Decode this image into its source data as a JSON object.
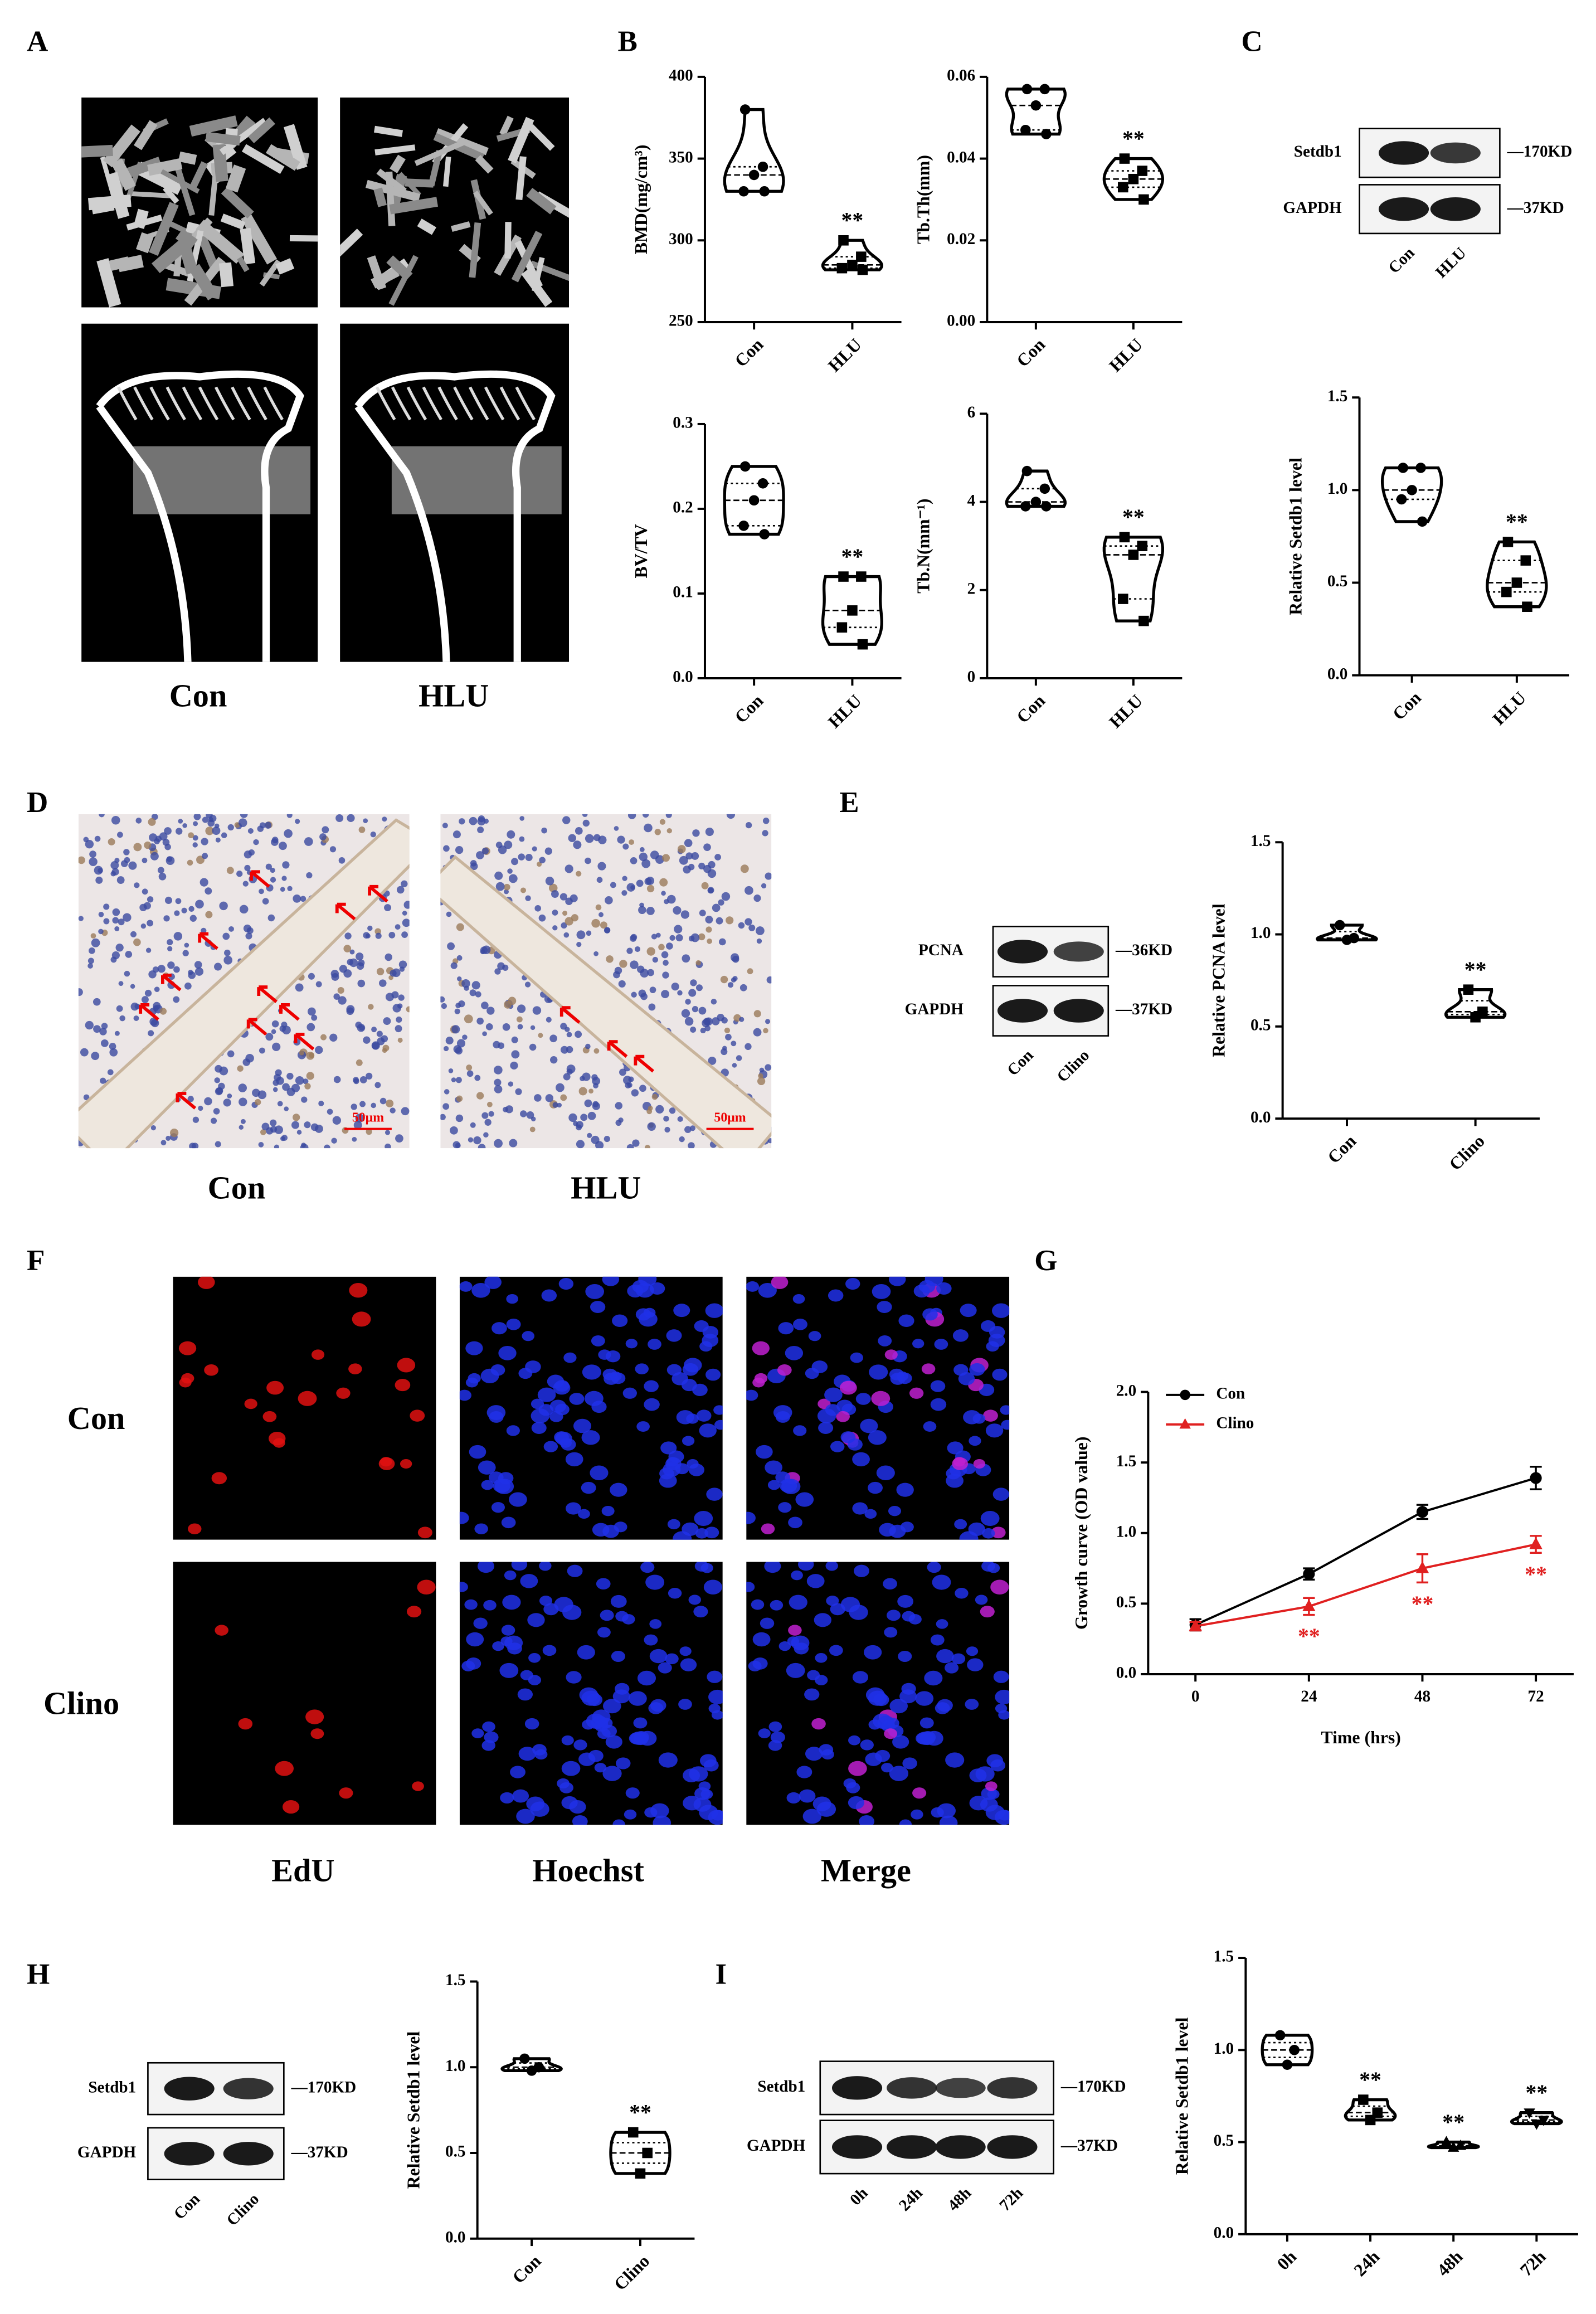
{
  "panel_labels": [
    "A",
    "B",
    "C",
    "D",
    "E",
    "F",
    "G",
    "H",
    "I"
  ],
  "panel_a": {
    "labels": [
      "Con",
      "HLU"
    ]
  },
  "panel_d": {
    "labels": [
      "Con",
      "HLU"
    ],
    "scale_bar": "50μm"
  },
  "panel_f": {
    "rows": [
      "Con",
      "Clino"
    ],
    "columns": [
      "EdU",
      "Hoechst",
      "Merge"
    ]
  },
  "blots": [
    {
      "proteins": [
        "Setdb1",
        "GAPDH"
      ],
      "sizes": [
        "—170KD",
        "—37KD"
      ],
      "lanes": [
        "Con",
        "HLU"
      ]
    },
    {
      "proteins": [
        "PCNA",
        "GAPDH"
      ],
      "sizes": [
        "—36KD",
        "—37KD"
      ],
      "lanes": [
        "Con",
        "Clino"
      ]
    },
    {
      "proteins": [
        "Setdb1",
        "GAPDH"
      ],
      "sizes": [
        "—170KD",
        "—37KD"
      ],
      "lanes": [
        "Con",
        "Clino"
      ]
    },
    {
      "proteins": [
        "Setdb1",
        "GAPDH"
      ],
      "sizes": [
        "—170KD",
        "—37KD"
      ],
      "lanes": [
        "0h",
        "24h",
        "48h",
        "72h"
      ]
    }
  ],
  "chart_data": [
    {
      "type": "violin",
      "ylabel": "BMD(mg/cm³)",
      "categories": [
        "Con",
        "HLU"
      ],
      "values": [
        [
          380,
          345,
          340,
          330,
          330
        ],
        [
          300,
          290,
          285,
          283,
          282
        ]
      ],
      "markers": [
        "circle",
        "square"
      ],
      "significance": [
        null,
        "**"
      ],
      "ylim": [
        250,
        400
      ],
      "yticks": [
        250,
        300,
        350,
        400
      ]
    },
    {
      "type": "violin",
      "ylabel": "Tb.Th(mm)",
      "categories": [
        "Con",
        "HLU"
      ],
      "values": [
        [
          0.057,
          0.057,
          0.053,
          0.047,
          0.046
        ],
        [
          0.04,
          0.037,
          0.035,
          0.033,
          0.03
        ]
      ],
      "markers": [
        "circle",
        "square"
      ],
      "significance": [
        null,
        "**"
      ],
      "ylim": [
        0,
        0.06
      ],
      "yticks": [
        {
          "value": 0,
          "label": "0.00"
        },
        {
          "value": 0.02,
          "label": "0.02"
        },
        {
          "value": 0.04,
          "label": "0.04"
        },
        {
          "value": 0.06,
          "label": "0.06"
        }
      ]
    },
    {
      "type": "violin",
      "ylabel": "BV/TV",
      "categories": [
        "Con",
        "HLU"
      ],
      "values": [
        [
          0.25,
          0.23,
          0.21,
          0.18,
          0.17
        ],
        [
          0.12,
          0.12,
          0.08,
          0.06,
          0.04
        ]
      ],
      "markers": [
        "circle",
        "square"
      ],
      "significance": [
        null,
        "**"
      ],
      "ylim": [
        0,
        0.3
      ],
      "yticks": [
        {
          "value": 0,
          "label": "0.0"
        },
        0.1,
        0.2,
        0.3
      ]
    },
    {
      "type": "violin",
      "ylabel": "Tb.N(mm⁻¹)",
      "categories": [
        "Con",
        "HLU"
      ],
      "values": [
        [
          4.7,
          4.3,
          4.0,
          3.9,
          3.9
        ],
        [
          3.2,
          3.0,
          2.8,
          1.8,
          1.3
        ]
      ],
      "markers": [
        "circle",
        "square"
      ],
      "significance": [
        null,
        "**"
      ],
      "ylim": [
        0,
        6
      ],
      "yticks": [
        0,
        2,
        4,
        6
      ]
    },
    {
      "type": "violin",
      "ylabel": "Relative Setdb1 level",
      "categories": [
        "Con",
        "HLU"
      ],
      "values": [
        [
          1.12,
          1.12,
          1.0,
          0.95,
          0.83
        ],
        [
          0.72,
          0.62,
          0.5,
          0.45,
          0.37
        ]
      ],
      "markers": [
        "circle",
        "square"
      ],
      "significance": [
        null,
        "**"
      ],
      "ylim": [
        0,
        1.5
      ],
      "yticks": [
        {
          "value": 0,
          "label": "0.0"
        },
        0.5,
        {
          "value": 1,
          "label": "1.0"
        },
        1.5
      ]
    },
    {
      "type": "violin",
      "ylabel": "Relative PCNA level",
      "categories": [
        "Con",
        "Clino"
      ],
      "values": [
        [
          1.05,
          0.98,
          0.97
        ],
        [
          0.7,
          0.58,
          0.55
        ]
      ],
      "markers": [
        "circle",
        "square"
      ],
      "significance": [
        null,
        "**"
      ],
      "ylim": [
        0,
        1.5
      ],
      "yticks": [
        {
          "value": 0,
          "label": "0.0"
        },
        0.5,
        {
          "value": 1,
          "label": "1.0"
        },
        1.5
      ]
    },
    {
      "type": "line",
      "ylabel": "Growth curve (OD value)",
      "xlabel": "Time (hrs)",
      "x": [
        0,
        24,
        48,
        72
      ],
      "series": [
        {
          "name": "Con",
          "color": "#000000",
          "marker": "circle",
          "values": [
            0.35,
            0.71,
            1.15,
            1.39
          ],
          "errors": [
            0.04,
            0.04,
            0.05,
            0.08
          ]
        },
        {
          "name": "Clino",
          "color": "#e02020",
          "marker": "triangle",
          "values": [
            0.34,
            0.48,
            0.75,
            0.92
          ],
          "errors": [
            0.03,
            0.06,
            0.1,
            0.06
          ],
          "significance": [
            null,
            "**",
            "**",
            "**"
          ]
        }
      ],
      "legend": "top-left",
      "xlim": [
        -10,
        80
      ],
      "xticks": [
        0,
        24,
        48,
        72
      ],
      "ylim": [
        0,
        2
      ],
      "yticks": [
        {
          "value": 0,
          "label": "0.0"
        },
        0.5,
        {
          "value": 1,
          "label": "1.0"
        },
        1.5,
        {
          "value": 2,
          "label": "2.0"
        }
      ]
    },
    {
      "type": "violin",
      "ylabel": "Relative Setdb1 level",
      "categories": [
        "Con",
        "Clino"
      ],
      "values": [
        [
          1.05,
          1.0,
          0.98
        ],
        [
          0.62,
          0.5,
          0.38
        ]
      ],
      "markers": [
        "circle",
        "square"
      ],
      "significance": [
        null,
        "**"
      ],
      "ylim": [
        0,
        1.5
      ],
      "yticks": [
        {
          "value": 0,
          "label": "0.0"
        },
        0.5,
        {
          "value": 1,
          "label": "1.0"
        },
        1.5
      ]
    },
    {
      "type": "violin",
      "ylabel": "Relative Setdb1 level",
      "categories": [
        "0h",
        "24h",
        "48h",
        "72h"
      ],
      "values": [
        [
          1.08,
          1.0,
          0.92
        ],
        [
          0.73,
          0.66,
          0.62
        ],
        [
          0.5,
          0.48,
          0.47
        ],
        [
          0.66,
          0.62,
          0.6
        ]
      ],
      "markers": [
        "circle",
        "square",
        "triangle",
        "triangle-down"
      ],
      "significance": [
        null,
        "**",
        "**",
        "**"
      ],
      "ylim": [
        0,
        1.5
      ],
      "yticks": [
        {
          "value": 0,
          "label": "0.0"
        },
        0.5,
        {
          "value": 1,
          "label": "1.0"
        },
        1.5
      ]
    }
  ]
}
